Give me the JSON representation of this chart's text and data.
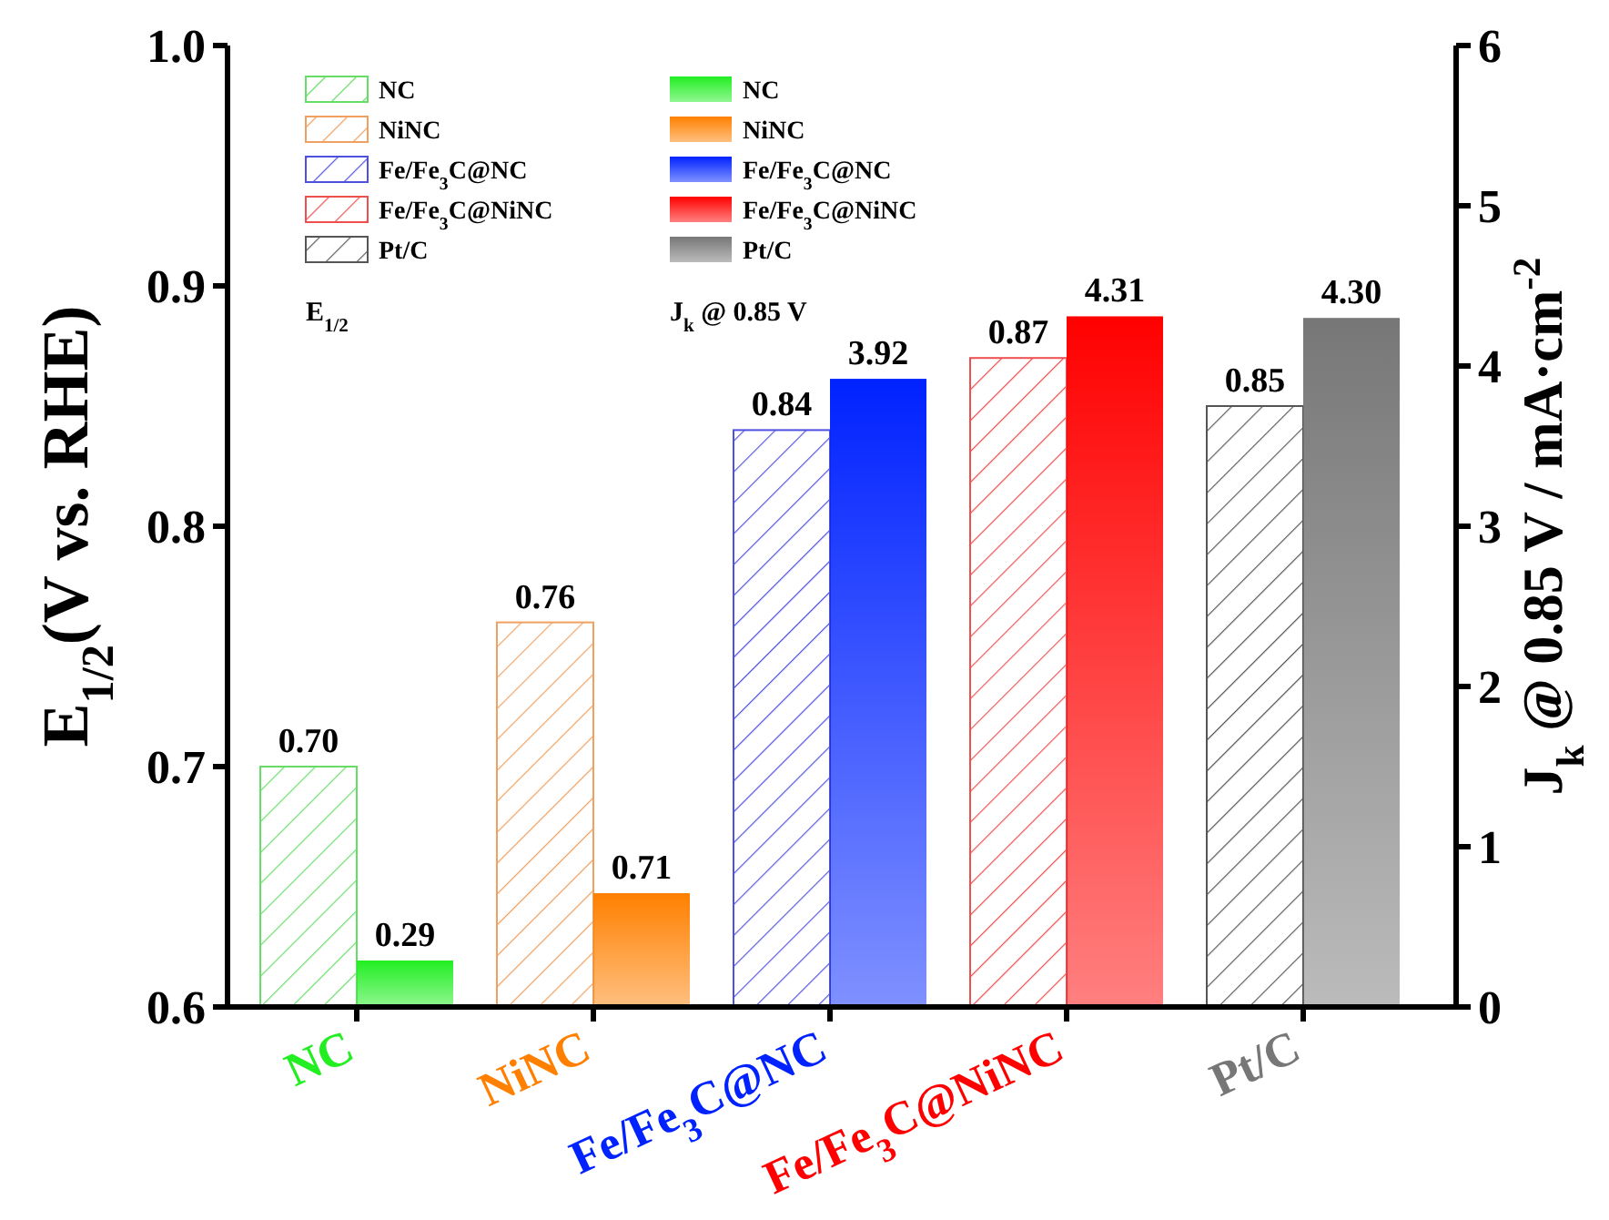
{
  "chart_data": {
    "type": "bar",
    "ylabel": "E$_{1/2}$(V vs. RHE)",
    "y2label": "J$_{k}$ @ 0.85 V / mA·cm$^{-2}$",
    "categories": [
      "NC",
      "NiNC",
      "Fe/Fe$_{3}$C@NC",
      "Fe/Fe$_{3}$C@NiNC",
      "Pt/C"
    ],
    "series": [
      {
        "name": "NC",
        "color": "#66dd66",
        "values": [
          0.7,
          null,
          null,
          null,
          null
        ],
        "value_labels": [
          "0.70",
          null,
          null,
          null,
          null
        ]
      },
      {
        "name": "NiNC",
        "color": "#f0a060",
        "values": [
          null,
          0.76,
          null,
          null,
          null
        ],
        "value_labels": [
          null,
          "0.76",
          null,
          null,
          null
        ]
      },
      {
        "name": "Fe/Fe$_{3}$C@NC",
        "color": "#5050e0",
        "values": [
          null,
          null,
          0.84,
          null,
          null
        ],
        "value_labels": [
          null,
          null,
          "0.84",
          null,
          null
        ]
      },
      {
        "name": "Fe/Fe$_{3}$C@NiNC",
        "color": "#ee5050",
        "values": [
          null,
          null,
          null,
          0.87,
          null
        ],
        "value_labels": [
          null,
          null,
          null,
          "0.87",
          null
        ]
      },
      {
        "name": "Pt/C",
        "color": "#555555",
        "values": [
          null,
          null,
          null,
          null,
          0.85
        ],
        "value_labels": [
          null,
          null,
          null,
          null,
          "0.85"
        ]
      },
      {
        "name": "NC",
        "axis": "y2",
        "color": "#22ee22",
        "values": [
          0.29,
          null,
          null,
          null,
          null
        ],
        "value_labels": [
          "0.29",
          null,
          null,
          null,
          null
        ]
      },
      {
        "name": "NiNC",
        "axis": "y2",
        "color": "#ff8000",
        "values": [
          null,
          0.71,
          null,
          null,
          null
        ],
        "value_labels": [
          null,
          "0.71",
          null,
          null,
          null
        ]
      },
      {
        "name": "Fe/Fe$_{3}$C@NC",
        "axis": "y2",
        "color": "#0022ff",
        "values": [
          null,
          null,
          3.92,
          null,
          null
        ],
        "value_labels": [
          null,
          null,
          "3.92",
          null,
          null
        ]
      },
      {
        "name": "Fe/Fe$_{3}$C@NiNC",
        "axis": "y2",
        "color": "#ff0000",
        "values": [
          null,
          null,
          null,
          4.31,
          null
        ],
        "value_labels": [
          null,
          null,
          null,
          "4.31",
          null
        ]
      },
      {
        "name": "Pt/C",
        "axis": "y2",
        "color": "#777777",
        "values": [
          null,
          null,
          null,
          null,
          4.3
        ],
        "value_labels": [
          null,
          null,
          null,
          null,
          "4.30"
        ]
      }
    ],
    "annotations": [
      "E$_{1/2}$",
      "J$_{k}$ @ 0.85 V"
    ],
    "ylim": [
      0.6,
      1.0
    ],
    "yticks": [
      {
        "value": 0.6,
        "label": "0.6"
      },
      {
        "value": 0.7,
        "label": "0.7"
      },
      {
        "value": 0.8,
        "label": "0.8"
      },
      {
        "value": 0.9,
        "label": "0.9"
      },
      {
        "value": 1.0,
        "label": "1.0"
      }
    ],
    "y2lim": [
      0,
      6
    ],
    "y2ticks": [
      0,
      1,
      2,
      3,
      4,
      5,
      6
    ],
    "legend": "top left"
  }
}
